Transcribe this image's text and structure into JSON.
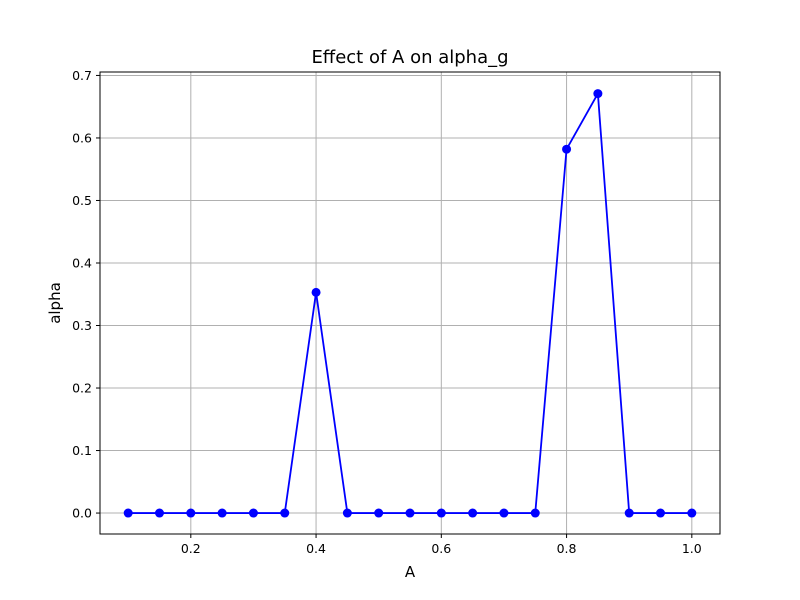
{
  "chart_data": {
    "type": "line",
    "title": "Effect of A on alpha_g",
    "xlabel": "A",
    "ylabel": "alpha",
    "xlim": [
      0.055,
      1.045
    ],
    "ylim": [
      -0.0335,
      0.7055
    ],
    "xticks": [
      0.2,
      0.4,
      0.6,
      0.8,
      1.0
    ],
    "xtick_labels": [
      "0.2",
      "0.4",
      "0.6",
      "0.8",
      "1.0"
    ],
    "yticks": [
      0.0,
      0.1,
      0.2,
      0.3,
      0.4,
      0.5,
      0.6,
      0.7
    ],
    "ytick_labels": [
      "0.0",
      "0.1",
      "0.2",
      "0.3",
      "0.4",
      "0.5",
      "0.6",
      "0.7"
    ],
    "grid": true,
    "color": "#0000ff",
    "marker": "circle",
    "x": [
      0.1,
      0.15,
      0.2,
      0.25,
      0.3,
      0.35,
      0.4,
      0.45,
      0.5,
      0.55,
      0.6,
      0.65,
      0.7,
      0.75,
      0.8,
      0.85,
      0.9,
      0.95,
      1.0
    ],
    "y": [
      0,
      0,
      0,
      0,
      0,
      0,
      0.353,
      0,
      0,
      0,
      0,
      0,
      0,
      0,
      0.582,
      0.671,
      0,
      0,
      0
    ]
  }
}
